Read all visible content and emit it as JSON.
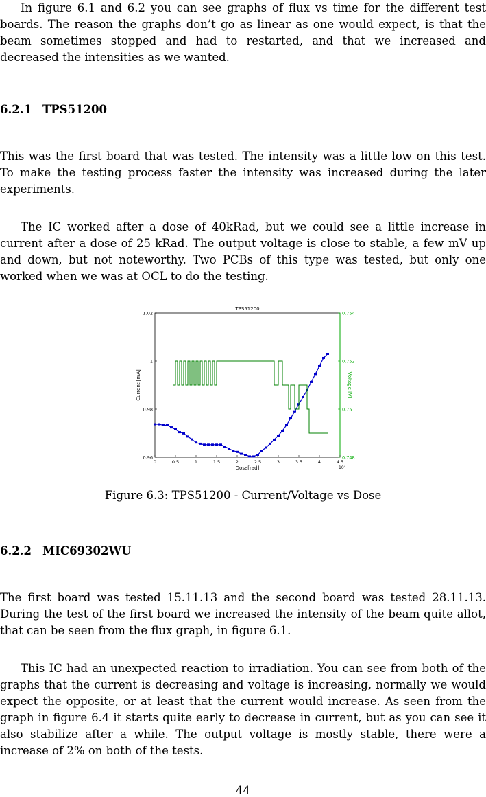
{
  "paragraphs": {
    "intro": "In figure 6.1 and 6.2 you can see graphs of flux vs time for the different test boards. The reason the graphs don’t go as linear as one would expect, is that the beam sometimes stopped and had to restarted, and that we increased and decreased the intensities as we wanted.",
    "tps_1": "This was the first board that was tested. The intensity was a little low on this test. To make the testing process faster the intensity was increased during the later experiments.",
    "tps_2": "The IC worked after a dose of 40kRad, but we could see a little increase in current after a dose of 25 kRad. The output voltage is close to stable, a few mV up and down, but not noteworthy. Two PCBs of this type was tested, but only one worked when we was at OCL to do the testing.",
    "mic_1": "The first board was tested 15.11.13 and the second board was tested 28.11.13. During the test of the first board we increased the intensity of the beam quite allot, that can be seen from the flux graph, in figure 6.1.",
    "mic_2": "This IC had an unexpected reaction to irradiation. You can see from both of the graphs that the current is decreasing and voltage is increasing, normally we would expect the opposite, or at least that the current would increase. As seen from the graph in figure 6.4 it starts quite early to decrease in current, but as you can see it also stabilize after a while. The output voltage is mostly stable, there were a increase of 2% on both of the tests."
  },
  "headings": {
    "tps": {
      "number": "6.2.1",
      "title": "TPS51200"
    },
    "mic": {
      "number": "6.2.2",
      "title": "MIC69302WU"
    }
  },
  "figure": {
    "caption": "Figure 6.3: TPS51200 - Current/Voltage vs Dose"
  },
  "page_number": "44",
  "chart_data": {
    "type": "line",
    "title": "TPS51200",
    "xlabel": "Dose[rad]",
    "x_exponent_label": "10⁴",
    "ylabel_left": "Current [mA]",
    "ylabel_right": "Voltage [V]",
    "xlim": [
      0,
      4.5
    ],
    "ylim_left": [
      0.96,
      1.02
    ],
    "ylim_right": [
      0.748,
      0.754
    ],
    "x_ticks": [
      "0",
      "0.5",
      "1",
      "1.5",
      "2",
      "2.5",
      "3",
      "3.5",
      "4",
      "4.5"
    ],
    "y_ticks_left": [
      "0.96",
      "0.98",
      "1",
      "1.02"
    ],
    "y_ticks_right": [
      "0.748",
      "0.75",
      "0.752",
      "0.754"
    ],
    "colors": {
      "current": "#0000cc",
      "voltage": "#008000",
      "axis_right": "#00aa00"
    },
    "series": [
      {
        "name": "Current [mA]",
        "axis": "left",
        "x": [
          0,
          0.1,
          0.2,
          0.3,
          0.4,
          0.5,
          0.6,
          0.7,
          0.8,
          0.9,
          1.0,
          1.1,
          1.2,
          1.3,
          1.4,
          1.5,
          1.6,
          1.7,
          1.8,
          1.9,
          2.0,
          2.1,
          2.2,
          2.3,
          2.4,
          2.5,
          2.6,
          2.7,
          2.8,
          2.9,
          3.0,
          3.1,
          3.2,
          3.3,
          3.4,
          3.5,
          3.6,
          3.7,
          3.8,
          3.9,
          4.0,
          4.1,
          4.2
        ],
        "y": [
          0.9737,
          0.9737,
          0.9733,
          0.9733,
          0.9724,
          0.9716,
          0.9704,
          0.9699,
          0.9686,
          0.9674,
          0.9661,
          0.9656,
          0.9652,
          0.9652,
          0.9652,
          0.9652,
          0.9652,
          0.9644,
          0.9635,
          0.9627,
          0.9622,
          0.9614,
          0.961,
          0.9603,
          0.9603,
          0.961,
          0.9627,
          0.964,
          0.9656,
          0.9673,
          0.969,
          0.971,
          0.9733,
          0.9762,
          0.9791,
          0.9821,
          0.985,
          0.9879,
          0.9913,
          0.9946,
          0.9979,
          1.0013,
          1.003
        ]
      },
      {
        "name": "Voltage [V]",
        "axis": "right",
        "x": [
          0.45,
          0.5,
          0.55,
          0.6,
          0.65,
          0.7,
          0.75,
          0.8,
          0.85,
          0.9,
          0.95,
          1.0,
          1.05,
          1.1,
          1.15,
          1.2,
          1.25,
          1.3,
          1.35,
          1.4,
          1.45,
          1.5,
          1.75,
          2.0,
          2.25,
          2.5,
          2.75,
          2.9,
          3.0,
          3.1,
          3.2,
          3.25,
          3.3,
          3.4,
          3.5,
          3.55,
          3.7,
          3.75,
          3.8,
          3.9,
          4.0,
          4.1,
          4.2
        ],
        "y": [
          0.751,
          0.752,
          0.751,
          0.752,
          0.751,
          0.752,
          0.751,
          0.752,
          0.751,
          0.752,
          0.751,
          0.752,
          0.751,
          0.752,
          0.751,
          0.752,
          0.751,
          0.752,
          0.751,
          0.752,
          0.751,
          0.752,
          0.752,
          0.752,
          0.752,
          0.752,
          0.752,
          0.751,
          0.752,
          0.751,
          0.751,
          0.75,
          0.751,
          0.75,
          0.751,
          0.751,
          0.75,
          0.749,
          0.749,
          0.749,
          0.749,
          0.749,
          0.749
        ]
      }
    ]
  }
}
